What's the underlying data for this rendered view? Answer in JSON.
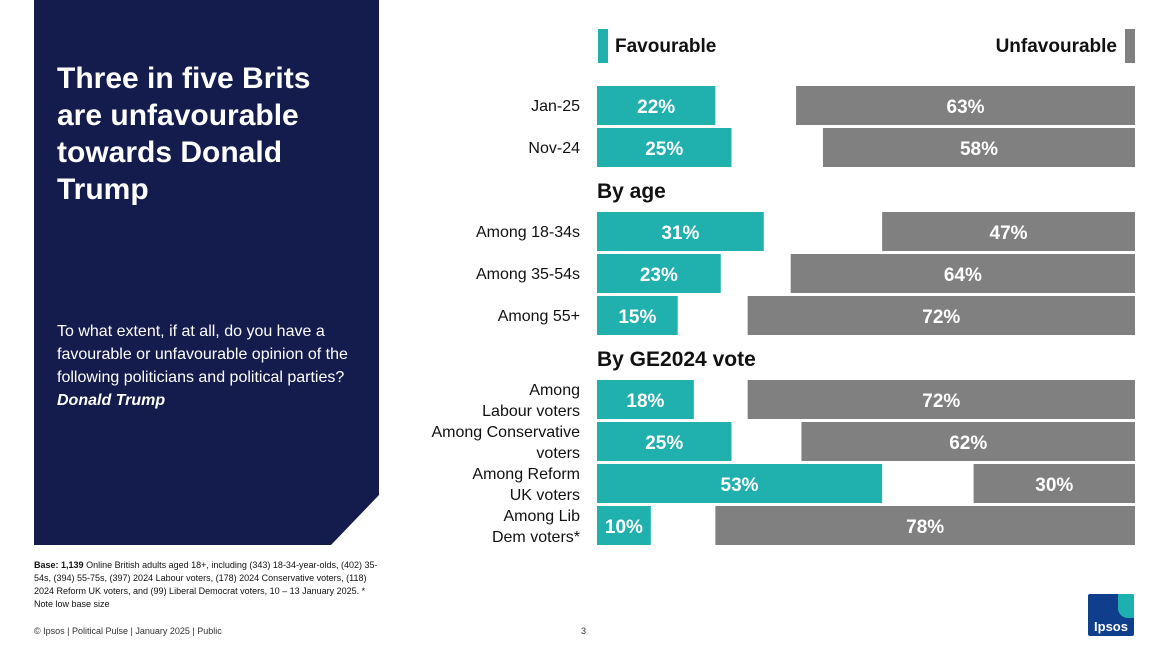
{
  "panel": {
    "title": "Three in five Brits are unfavourable towards Donald Trump",
    "question": "To what extent, if at all, do you have a favourable or unfavourable opinion of the following politicians and political parties?",
    "question_emphasis": "Donald Trump"
  },
  "base_note": {
    "label": "Base: 1,139",
    "text": "Online British adults aged 18+, including (343) 18-34-year-olds, (402) 35-54s, (394) 55-75s, (397) 2024 Labour voters, (178) 2024 Conservative voters, (118) 2024 Reform UK voters, and (99) Liberal Democrat voters, 10 – 13 January 2025. * Note low base size"
  },
  "footer": {
    "text": "© Ipsos | Political Pulse | January 2025 | Public",
    "page": "3"
  },
  "logo": {
    "text": "Ipsos"
  },
  "colors": {
    "favourable": "#20b0ae",
    "unfavourable": "#808080",
    "panel": "#141b4d"
  },
  "chart_data": {
    "type": "bar",
    "series": [
      {
        "name": "Favourable",
        "color": "#20b0ae"
      },
      {
        "name": "Unfavourable",
        "color": "#808080"
      }
    ],
    "sections": [
      {
        "title": "",
        "rows": [
          {
            "label": [
              "Jan-25"
            ],
            "favourable": 22,
            "unfavourable": 63
          },
          {
            "label": [
              "Nov-24"
            ],
            "favourable": 25,
            "unfavourable": 58
          }
        ]
      },
      {
        "title": "By age",
        "rows": [
          {
            "label": [
              "Among 18-34s"
            ],
            "favourable": 31,
            "unfavourable": 47
          },
          {
            "label": [
              "Among 35-54s"
            ],
            "favourable": 23,
            "unfavourable": 64
          },
          {
            "label": [
              "Among 55+"
            ],
            "favourable": 15,
            "unfavourable": 72
          }
        ]
      },
      {
        "title": "By GE2024 vote",
        "rows": [
          {
            "label": [
              "Among",
              "Labour voters"
            ],
            "favourable": 18,
            "unfavourable": 72
          },
          {
            "label": [
              "Among Conservative",
              "voters"
            ],
            "favourable": 25,
            "unfavourable": 62
          },
          {
            "label": [
              "Among Reform",
              "UK voters"
            ],
            "favourable": 53,
            "unfavourable": 30
          },
          {
            "label": [
              "Among Lib",
              "Dem voters*"
            ],
            "favourable": 10,
            "unfavourable": 78
          }
        ]
      }
    ],
    "value_suffix": "%",
    "xlim": [
      0,
      100
    ],
    "legend_position": "top"
  }
}
